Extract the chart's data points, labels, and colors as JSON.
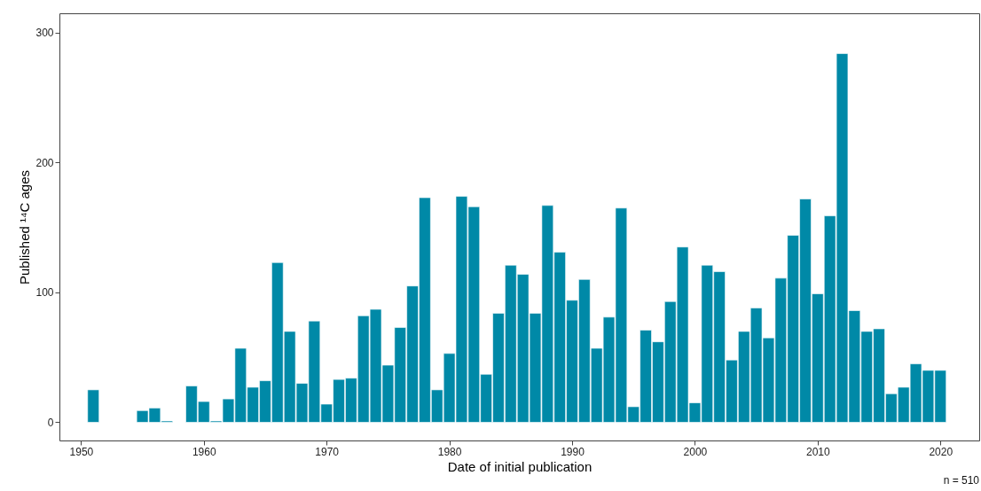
{
  "chart_data": {
    "type": "bar",
    "xlabel": "Date of initial publication",
    "ylabel": "Published ¹⁴C ages",
    "x": [
      1951,
      1952,
      1953,
      1954,
      1955,
      1956,
      1957,
      1958,
      1959,
      1960,
      1961,
      1962,
      1963,
      1964,
      1965,
      1966,
      1967,
      1968,
      1969,
      1970,
      1971,
      1972,
      1973,
      1974,
      1975,
      1976,
      1977,
      1978,
      1979,
      1980,
      1981,
      1982,
      1983,
      1984,
      1985,
      1986,
      1987,
      1988,
      1989,
      1990,
      1991,
      1992,
      1993,
      1994,
      1995,
      1996,
      1997,
      1998,
      1999,
      2000,
      2001,
      2002,
      2003,
      2004,
      2005,
      2006,
      2007,
      2008,
      2009,
      2010,
      2011,
      2012,
      2013,
      2014,
      2015,
      2016,
      2017,
      2018,
      2019,
      2020
    ],
    "values": [
      25,
      null,
      null,
      null,
      9,
      11,
      1,
      null,
      28,
      16,
      1,
      18,
      57,
      27,
      32,
      123,
      70,
      30,
      78,
      14,
      33,
      34,
      82,
      87,
      44,
      73,
      105,
      173,
      25,
      53,
      174,
      166,
      37,
      84,
      121,
      114,
      84,
      167,
      131,
      94,
      110,
      57,
      81,
      165,
      12,
      71,
      62,
      93,
      135,
      15,
      121,
      116,
      48,
      70,
      88,
      65,
      111,
      144,
      172,
      99,
      159,
      284,
      86,
      70,
      72,
      22,
      27,
      45,
      40,
      40
    ],
    "color": "#0089a7",
    "xlim": [
      1948.6,
      2022.8
    ],
    "xticks": [
      1950,
      1960,
      1970,
      1980,
      1990,
      2000,
      2010,
      2020
    ],
    "ylim": [
      -14,
      315
    ],
    "yticks": [
      0,
      100,
      200,
      300
    ],
    "grid": false,
    "annotations": [
      "n = 510"
    ]
  }
}
